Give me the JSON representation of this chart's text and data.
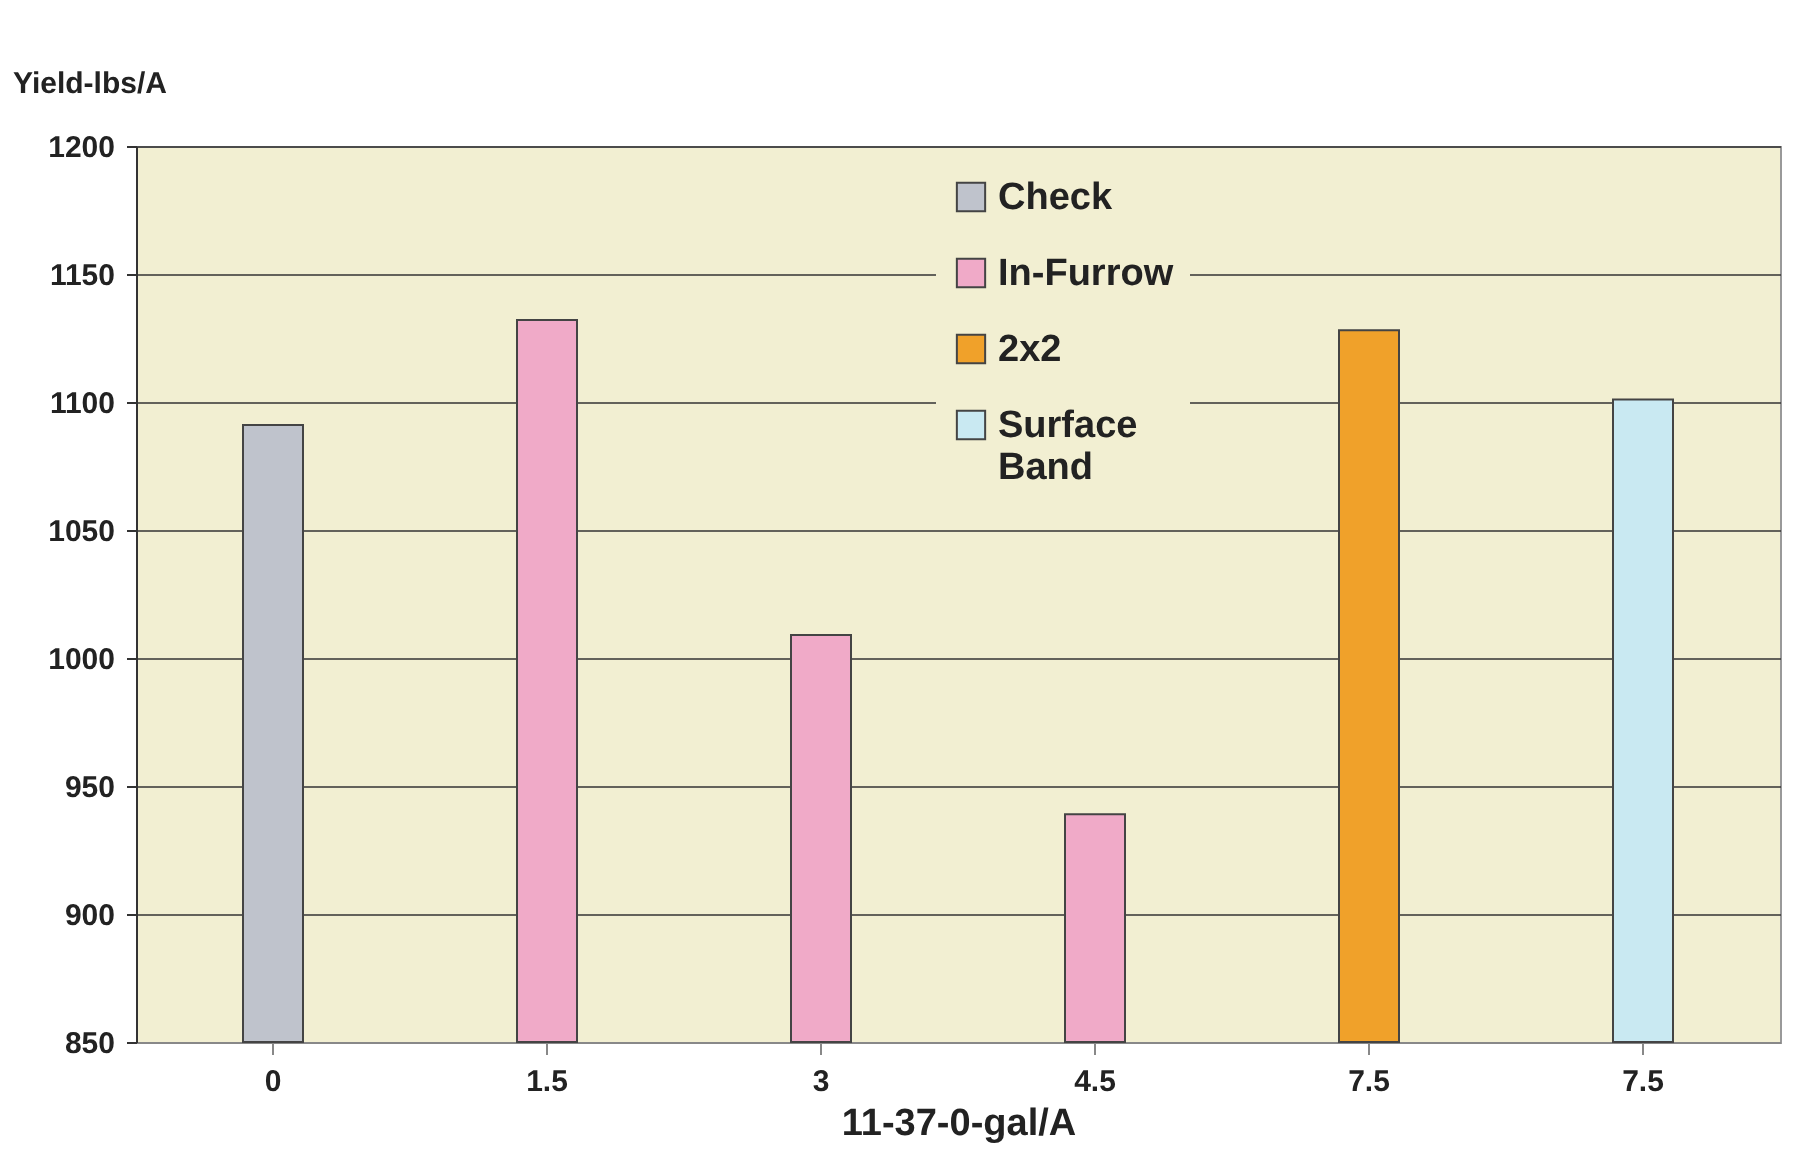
{
  "chart_data": {
    "type": "bar",
    "xlabel": "11-37-0-gal/A",
    "ylabel": "Yield-lbs/A",
    "categories": [
      "0",
      "1.5",
      "3",
      "4.5",
      "7.5",
      "7.5"
    ],
    "series": [
      {
        "name": "Check",
        "color": "#bfc3cc",
        "values": [
          1091,
          null,
          null,
          null,
          null,
          null
        ]
      },
      {
        "name": "In-Furrow",
        "color": "#f0aac8",
        "values": [
          null,
          1132,
          1009,
          939,
          null,
          null
        ]
      },
      {
        "name": "2x2",
        "color": "#f0a12a",
        "values": [
          null,
          null,
          null,
          null,
          1128,
          null
        ]
      },
      {
        "name": "Surface Band",
        "color": "#c9e9f2",
        "values": [
          null,
          null,
          null,
          null,
          null,
          1101
        ]
      }
    ],
    "ylim": [
      850,
      1200
    ],
    "yticks": [
      850,
      900,
      950,
      1000,
      1050,
      1100,
      1150,
      1200
    ],
    "grid": "y",
    "legend": "top right"
  }
}
